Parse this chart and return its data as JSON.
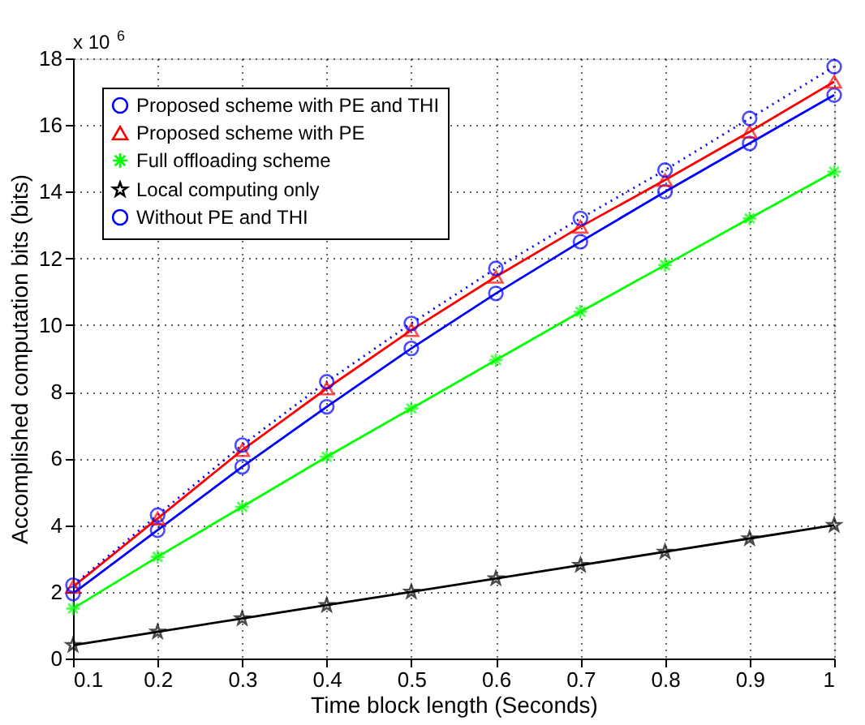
{
  "chart_data": {
    "type": "line",
    "xlabel": "Time block length (Seconds)",
    "ylabel": "Accomplished computation bits (bits)",
    "annotations": [
      "x 10$^{6}$"
    ],
    "x": [
      0.1,
      0.2,
      0.3,
      0.4,
      0.5,
      0.6,
      0.7,
      0.8,
      0.9,
      1.0
    ],
    "series": [
      {
        "name": "Proposed scheme with PE and THI",
        "color": "#0000ff",
        "marker": "circle",
        "line_style": "solid",
        "values": [
          1.95,
          3.85,
          5.75,
          7.55,
          9.3,
          10.95,
          12.5,
          14.0,
          15.45,
          16.9
        ]
      },
      {
        "name": "Proposed scheme with PE",
        "color": "#ff0000",
        "marker": "triangle",
        "line_style": "solid",
        "values": [
          2.15,
          4.2,
          6.25,
          8.1,
          9.85,
          11.45,
          12.95,
          14.35,
          15.8,
          17.3
        ]
      },
      {
        "name": "Full offloading scheme",
        "color": "#00ff00",
        "marker": "cross",
        "line_style": "solid",
        "values": [
          1.5,
          3.05,
          4.55,
          6.05,
          7.5,
          8.95,
          10.4,
          11.8,
          13.2,
          14.6
        ]
      },
      {
        "name": "Local computing only",
        "color": "#000000",
        "marker": "star",
        "line_style": "solid",
        "values": [
          0.4,
          0.8,
          1.2,
          1.6,
          2.0,
          2.4,
          2.8,
          3.2,
          3.6,
          4.0
        ]
      },
      {
        "name": "Without PE and THI",
        "color": "#0000ff",
        "marker": "circle",
        "line_style": "dotted",
        "values": [
          2.2,
          4.3,
          6.4,
          8.3,
          10.05,
          11.7,
          13.2,
          14.65,
          16.2,
          17.75
        ]
      }
    ],
    "xlim": [
      0.1,
      1.0
    ],
    "xticks": [
      0.1,
      0.2,
      0.3,
      0.4,
      0.5,
      0.6,
      0.7,
      0.8,
      0.9,
      {
        "value": 1.0,
        "label": "1"
      }
    ],
    "ylim": [
      0,
      18
    ],
    "yticks": [
      0,
      2,
      4,
      6,
      8,
      10,
      12,
      14,
      16,
      18
    ],
    "grid": true,
    "legend": "top left"
  }
}
